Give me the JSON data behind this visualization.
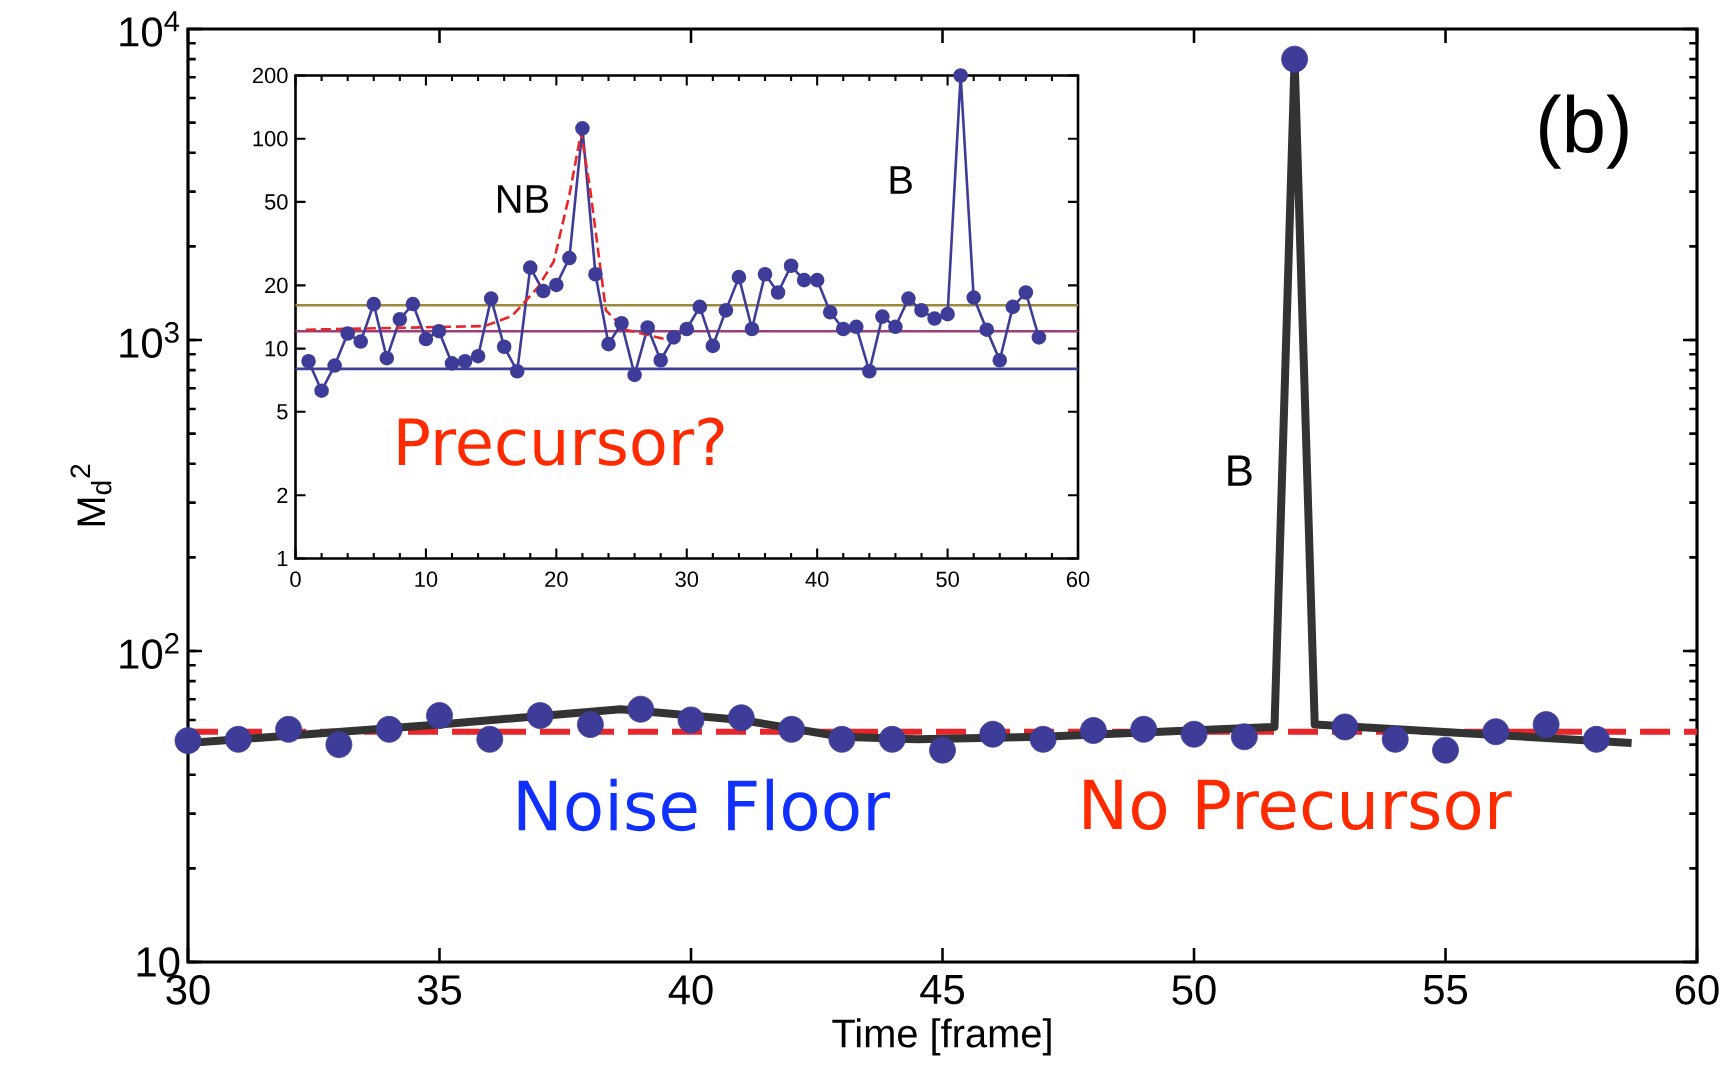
{
  "chart_data": [
    {
      "type": "line",
      "xlabel": "Time [frame]",
      "ylabel": "M$_{d}$$^{2}$",
      "log": "y",
      "marker": "circle",
      "xlim": [
        30,
        60
      ],
      "ylim": [
        10,
        10000
      ],
      "xticks": [
        30,
        35,
        40,
        45,
        50,
        55,
        60
      ],
      "yticks": [
        10,
        {
          "value": 100,
          "label": "10$^{2}$"
        },
        {
          "value": 1000,
          "label": "10$^{3}$"
        },
        {
          "value": 10000,
          "label": "10$^{4}$"
        }
      ],
      "series": [
        {
          "type": "scatter",
          "color": "#3d3d99",
          "x": [
            30,
            31,
            32,
            33,
            34,
            35,
            36,
            37,
            38,
            39,
            40,
            41,
            42,
            43,
            44,
            45,
            46,
            47,
            48,
            49,
            50,
            51,
            52,
            53,
            54,
            55,
            56,
            57,
            58
          ],
          "values": [
            51.5,
            52,
            56,
            50,
            56,
            62,
            52,
            62,
            58,
            65,
            60,
            61,
            56,
            52,
            52,
            48,
            54,
            52,
            55.5,
            56,
            54,
            53,
            8000,
            57,
            52,
            48,
            55,
            58,
            52
          ]
        },
        {
          "type": "line",
          "marker": "none",
          "color": "#333333",
          "x": [
            30,
            35,
            38.6,
            41,
            43,
            44.5,
            47,
            51.6,
            52,
            52.4,
            58.7
          ],
          "values": [
            50.6,
            58,
            65,
            60,
            53,
            52,
            53,
            57,
            8000,
            58,
            50.6
          ]
        }
      ],
      "ref_lines": [
        {
          "axis": "y",
          "value": 55,
          "color": "#e8262a",
          "line_style": "dashed"
        }
      ],
      "annotations": [
        "(b)",
        "B",
        "Noise Floor",
        "No Precursor"
      ]
    },
    {
      "type": "line",
      "log": "y",
      "marker": "circle",
      "xlim": [
        0,
        60
      ],
      "ylim": [
        1,
        200
      ],
      "xticks": [
        0,
        10,
        20,
        30,
        40,
        50,
        60
      ],
      "yticks": [
        1,
        2,
        5,
        10,
        20,
        50,
        100,
        200
      ],
      "series": [
        {
          "color": "#3d3d99",
          "x": [
            1,
            2,
            3,
            4,
            5,
            6,
            7,
            8,
            9,
            10,
            11,
            12,
            13,
            14,
            15,
            16,
            17,
            18,
            19,
            20,
            21,
            22,
            23,
            24,
            25,
            26,
            27,
            28,
            29,
            30,
            31,
            32,
            33,
            34,
            35,
            36,
            37,
            38,
            39,
            40,
            41,
            42,
            43,
            44,
            45,
            46,
            47,
            48,
            49,
            50,
            51,
            52,
            53,
            54,
            55,
            56,
            57
          ],
          "values": [
            8.7,
            6.3,
            8.3,
            11.8,
            10.8,
            16.3,
            9.0,
            13.8,
            16.3,
            11.1,
            12.1,
            8.5,
            8.7,
            9.2,
            17.3,
            10.2,
            7.8,
            24.3,
            18.8,
            20.1,
            27,
            112,
            22.6,
            10.5,
            13.2,
            7.5,
            12.6,
            8.8,
            11.3,
            12.4,
            15.8,
            10.3,
            15.2,
            21.9,
            12.4,
            22.6,
            18.5,
            24.8,
            21.2,
            21.2,
            14.9,
            12.4,
            12.7,
            7.8,
            14.2,
            12.7,
            17.3,
            15.2,
            13.9,
            14.6,
            200,
            17.5,
            12.3,
            8.8,
            15.8,
            18.5,
            11.3
          ]
        },
        {
          "type": "line",
          "marker": "none",
          "line_style": "dashed",
          "color": "#e8262a",
          "x": [
            0.8,
            14.5,
            16.6,
            18.6,
            19.8,
            21,
            21.9,
            22.6,
            23.8,
            25.3,
            28.3
          ],
          "values": [
            12.3,
            12.8,
            14.3,
            19.6,
            26,
            54,
            107,
            57,
            15.2,
            12.3,
            11.1
          ]
        }
      ],
      "ref_lines": [
        {
          "axis": "y",
          "value": 16.1,
          "color": "#9a8a3a"
        },
        {
          "axis": "y",
          "value": 12.1,
          "color": "#9a3f78"
        },
        {
          "axis": "y",
          "value": 8.0,
          "color": "#3f3f9a"
        }
      ],
      "annotations": [
        "NB",
        "B",
        "Precursor?"
      ]
    }
  ]
}
